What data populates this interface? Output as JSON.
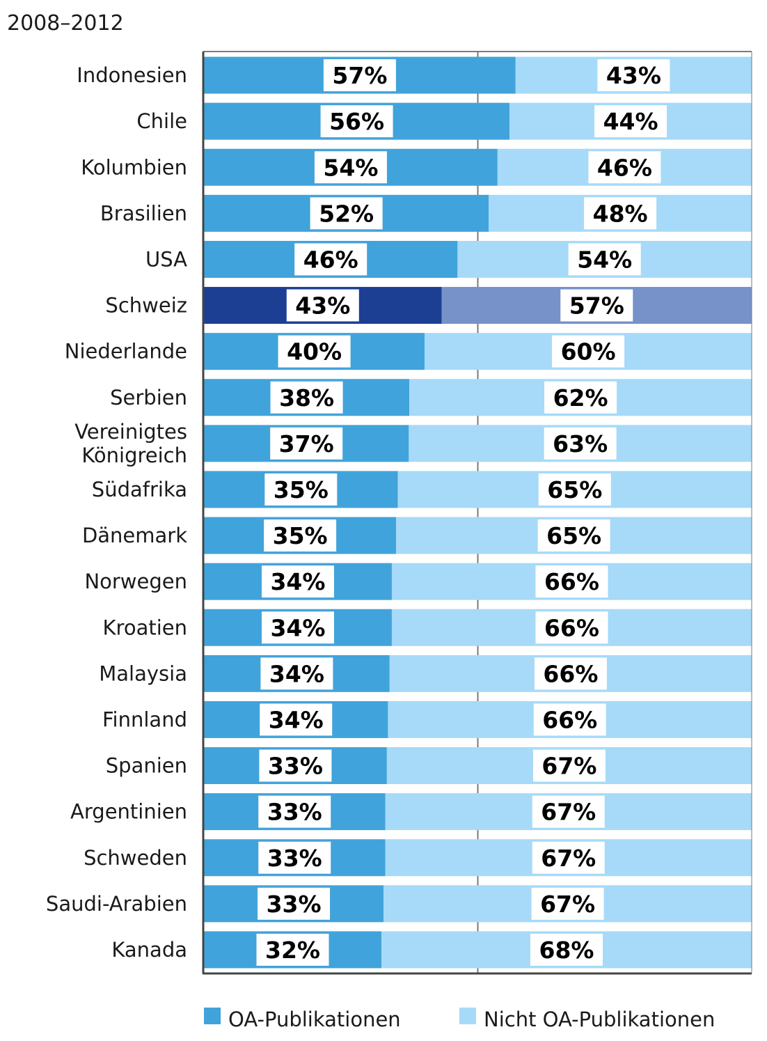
{
  "chart_data": {
    "type": "bar",
    "orientation": "horizontal",
    "stacked": true,
    "percent_stacked": true,
    "subtitle": "2008–2012",
    "categories": [
      "Indonesien",
      "Chile",
      "Kolumbien",
      "Brasilien",
      "USA",
      "Schweiz",
      "Niederlande",
      "Serbien",
      "Vereinigtes Königreich",
      "Südafrika",
      "Dänemark",
      "Norwegen",
      "Kroatien",
      "Malaysia",
      "Finnland",
      "Spanien",
      "Argentinien",
      "Schweden",
      "Saudi-Arabien",
      "Kanada"
    ],
    "series": [
      {
        "name": "OA-Publikationen",
        "values": [
          56.9,
          55.8,
          53.6,
          52.0,
          46.3,
          43.4,
          40.3,
          37.5,
          37.4,
          35.4,
          35.1,
          34.3,
          34.3,
          33.9,
          33.6,
          33.4,
          33.1,
          33.1,
          32.8,
          32.4
        ],
        "labels": [
          "57%",
          "56%",
          "54%",
          "52%",
          "46%",
          "43%",
          "40%",
          "38%",
          "37%",
          "35%",
          "35%",
          "34%",
          "34%",
          "34%",
          "34%",
          "33%",
          "33%",
          "33%",
          "33%",
          "32%"
        ],
        "color": "#41a3db",
        "highlight_color": "#1c3f94"
      },
      {
        "name": "Nicht OA-Publikationen",
        "values": [
          43.1,
          44.2,
          46.4,
          48.0,
          53.7,
          56.6,
          59.7,
          62.5,
          62.6,
          64.6,
          64.9,
          65.7,
          65.7,
          66.1,
          66.4,
          66.6,
          66.9,
          66.9,
          67.2,
          67.6
        ],
        "labels": [
          "43%",
          "44%",
          "46%",
          "48%",
          "54%",
          "57%",
          "60%",
          "62%",
          "63%",
          "65%",
          "65%",
          "66%",
          "66%",
          "66%",
          "66%",
          "67%",
          "67%",
          "67%",
          "67%",
          "68%"
        ],
        "color": "#a6daf8",
        "highlight_color": "#7792c9"
      }
    ],
    "highlight_category": "Schweiz",
    "xlim": [
      0,
      100
    ],
    "grid": true,
    "legend": "bottom"
  }
}
